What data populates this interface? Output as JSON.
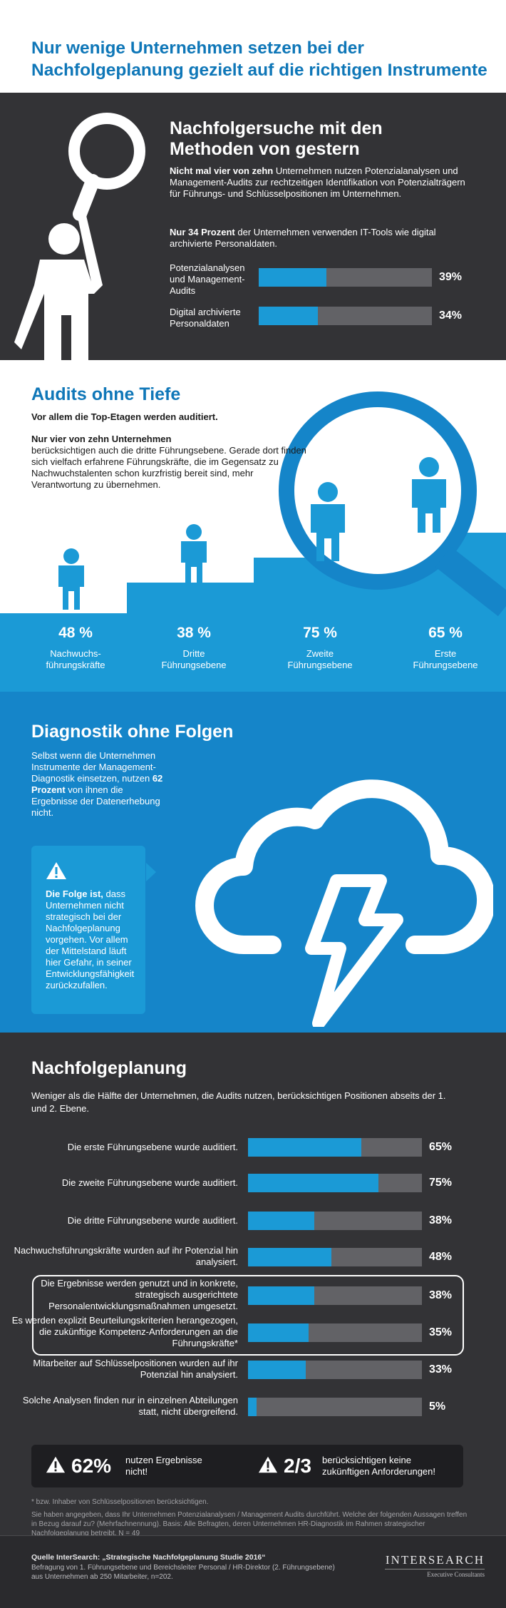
{
  "header": {
    "title": "Nur wenige Unternehmen setzen bei der Nachfolgeplanung gezielt auf die richtigen Instrumente"
  },
  "section1": {
    "title": "Nachfolgersuche mit den Methoden von gestern",
    "p1_bold": "Nicht mal vier von zehn",
    "p1_rest": " Unternehmen nutzen Potenzialanalysen und Management-Audits zur rechtzeitigen Identifikation von Potenzialträgern für Führungs- und Schlüsselpositionen im Unternehmen.",
    "p2_bold": "Nur 34 Prozent",
    "p2_rest": " der Unternehmen verwenden IT-Tools wie digital archivierte Personaldaten.",
    "bars": [
      {
        "label": "Potenzialanalysen und Management-Audits",
        "value": 39,
        "pct": "39%"
      },
      {
        "label": "Digital archivierte Personaldaten",
        "value": 34,
        "pct": "34%"
      }
    ]
  },
  "section2": {
    "title": "Audits ohne Tiefe",
    "lead": "Vor allem die Top-Etagen werden auditiert.",
    "p_bold": "Nur vier von zehn Unternehmen",
    "p_rest": "berücksichtigen auch die dritte Führungsebene. Gerade dort finden sich vielfach erfahrene Führungskräfte, die im Gegensatz zu Nachwuchstalenten schon kurzfristig bereit sind, mehr Verantwortung zu übernehmen.",
    "stats": [
      {
        "num": "48 %",
        "label1": "Nachwuchs-",
        "label2": "führungskräfte",
        "value": 48
      },
      {
        "num": "38 %",
        "label1": "Dritte",
        "label2": "Führungsebene",
        "value": 38
      },
      {
        "num": "75 %",
        "label1": "Zweite",
        "label2": "Führungsebene",
        "value": 75
      },
      {
        "num": "65 %",
        "label1": "Erste",
        "label2": "Führungsebene",
        "value": 65
      }
    ]
  },
  "section3": {
    "title": "Diagnostik ohne Folgen",
    "p_pre": "Selbst wenn die Unternehmen Instrumente der Management-Diagnostik einsetzen, nutzen ",
    "p_bold": "62 Prozent",
    "p_post": " von ihnen die Ergebnisse der Datenerhebung nicht.",
    "box_bold": "Die Folge ist,",
    "box_rest": " dass Unternehmen nicht strategisch bei der Nachfolgeplanung vorgehen. Vor allem der Mittelstand läuft hier Gefahr, in seiner Entwicklungsfähigkeit zurückzufallen.",
    "box_icon": "warning-icon"
  },
  "section4": {
    "title": "Nachfolgeplanung",
    "intro": "Weniger als die Hälfte der Unternehmen, die Audits nutzen, berücksichtigen Positionen abseits der 1. und 2. Ebene.",
    "rows": [
      {
        "label": "Die erste Führungsebene wurde auditiert.",
        "value": 65,
        "pct": "65%"
      },
      {
        "label": "Die zweite Führungsebene wurde auditiert.",
        "value": 75,
        "pct": "75%"
      },
      {
        "label": "Die dritte Führungsebene wurde auditiert.",
        "value": 38,
        "pct": "38%"
      },
      {
        "label": "Nachwuchsführungskräfte wurden auf ihr Potenzial hin analysiert.",
        "value": 48,
        "pct": "48%"
      },
      {
        "label": "Die Ergebnisse werden genutzt und in konkrete, strategisch ausgerichtete Personalentwicklungsmaßnahmen umgesetzt.",
        "value": 38,
        "pct": "38%"
      },
      {
        "label": "Es werden explizit Beurteilungskriterien herangezogen, die zukünftige Kompetenz-Anforderungen an die Führungskräfte*",
        "value": 35,
        "pct": "35%"
      },
      {
        "label": "Mitarbeiter auf Schlüsselpositionen wurden auf ihr Potenzial hin analysiert.",
        "value": 33,
        "pct": "33%"
      },
      {
        "label": "Solche Analysen finden nur in einzelnen Abteilungen statt, nicht übergreifend.",
        "value": 5,
        "pct": "5%"
      }
    ],
    "summary": [
      {
        "big": "62%",
        "text1": "nutzen Ergebnisse",
        "text2": "nicht!"
      },
      {
        "big": "2/3",
        "text1": "berücksichtigen keine",
        "text2": "zukünftigen Anforderungen!"
      }
    ],
    "footnote1": "* bzw. Inhaber von Schlüsselpositionen berücksichtigen.",
    "footnote2": "Sie haben angegeben, dass Ihr Unternehmen Potenzialanalysen / Management Audits durchführt. Welche der folgenden Aussagen treffen in Bezug darauf zu? (Mehrfachnennung). Basis: Alle Befragten, deren Unternehmen HR-Diagnostik im Rahmen strategischer Nachfolgeplanung betreibt, N = 49"
  },
  "footer": {
    "source_bold": "Quelle InterSearch: „Strategische Nachfolgeplanung Studie 2016“",
    "source_line2": "Befragung von 1. Führungsebene und Bereichsleiter Personal / HR-Direktor (2. Führungsebene)",
    "source_line3": "aus Unternehmen ab 250 Mitarbeiter, n=202.",
    "logo": "InterSearch",
    "logo_sub": "Executive Consultants"
  },
  "colors": {
    "accent": "#1b9ad6",
    "dark_blue": "#0f77b8",
    "dark_bg": "#333336",
    "track": "#626266"
  }
}
